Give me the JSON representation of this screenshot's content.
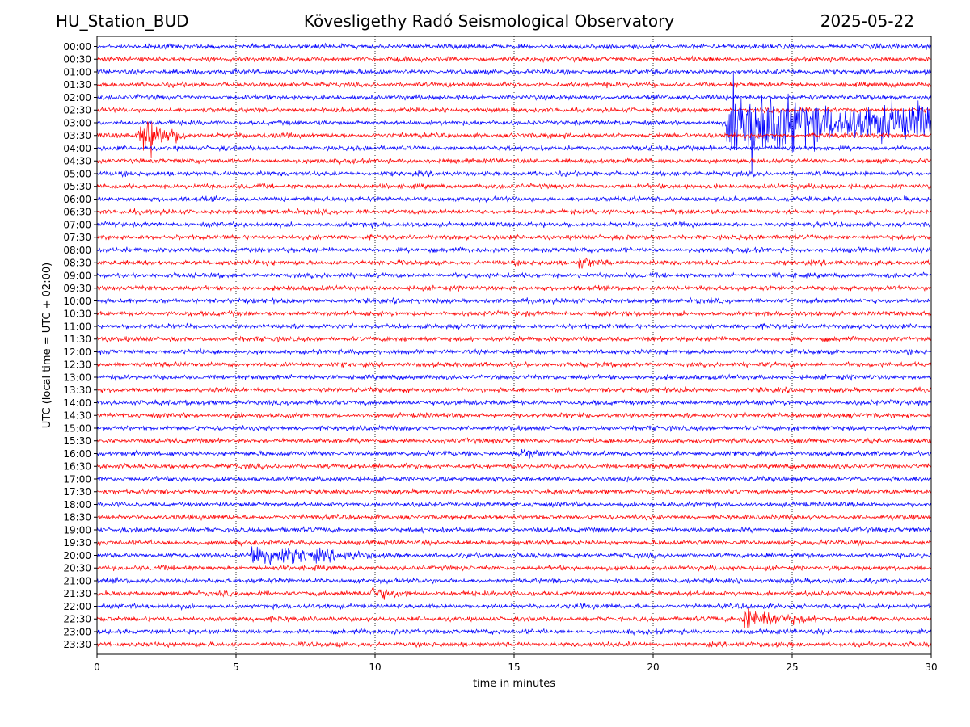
{
  "header": {
    "station": "HU_Station_BUD",
    "title": "Kövesligethy Radó Seismological Observatory",
    "date": "2025-05-22"
  },
  "colors": {
    "trace_a": "#0000ff",
    "trace_b": "#ff0000",
    "frame": "#000000",
    "grid": "#000000"
  },
  "chart_data": {
    "type": "line",
    "title": "Kövesligethy Radó Seismological Observatory",
    "xlabel": "time in minutes",
    "ylabel": "UTC (local time = UTC + 02:00)",
    "xlim": [
      0,
      30
    ],
    "xticks": [
      0,
      5,
      10,
      15,
      20,
      25,
      30
    ],
    "grid": "vertical dotted at x ticks",
    "row_labels": [
      "00:00",
      "00:30",
      "01:00",
      "01:30",
      "02:00",
      "02:30",
      "03:00",
      "03:30",
      "04:00",
      "04:30",
      "05:00",
      "05:30",
      "06:00",
      "06:30",
      "07:00",
      "07:30",
      "08:00",
      "08:30",
      "09:00",
      "09:30",
      "10:00",
      "10:30",
      "11:00",
      "11:30",
      "12:00",
      "12:30",
      "13:00",
      "13:30",
      "14:00",
      "14:30",
      "15:00",
      "15:30",
      "16:00",
      "16:30",
      "17:00",
      "17:30",
      "18:00",
      "18:30",
      "19:00",
      "19:30",
      "20:00",
      "20:30",
      "21:00",
      "21:30",
      "22:00",
      "22:30",
      "23:00",
      "23:30"
    ],
    "trace_colors": "alternating blue (on the hour) / red (on the half hour)",
    "events": [
      {
        "row": "03:00",
        "start_min": 22.6,
        "end_min": 30.0,
        "amplitude": "very large"
      },
      {
        "row": "03:30",
        "start_min": 1.5,
        "end_min": 3.2,
        "amplitude": "large"
      },
      {
        "row": "08:30",
        "start_min": 17.3,
        "end_min": 18.5,
        "amplitude": "small"
      },
      {
        "row": "16:00",
        "start_min": 15.1,
        "end_min": 16.2,
        "amplitude": "small"
      },
      {
        "row": "20:00",
        "start_min": 5.4,
        "end_min": 10.0,
        "amplitude": "medium"
      },
      {
        "row": "21:30",
        "start_min": 9.8,
        "end_min": 11.5,
        "amplitude": "small"
      },
      {
        "row": "22:30",
        "start_min": 23.2,
        "end_min": 25.8,
        "amplitude": "medium"
      }
    ]
  }
}
